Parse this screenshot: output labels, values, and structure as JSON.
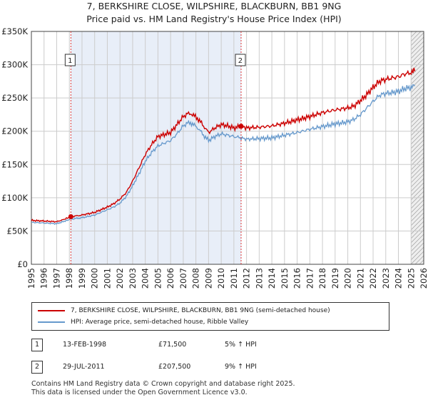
{
  "chart_data": {
    "type": "line",
    "title": "7, BERKSHIRE CLOSE, WILPSHIRE, BLACKBURN, BB1 9NG",
    "subtitle": "Price paid vs. HM Land Registry's House Price Index (HPI)",
    "xlabel": "",
    "ylabel": "",
    "xlim": [
      1995,
      2026
    ],
    "ylim": [
      0,
      350000
    ],
    "grid": true,
    "y_ticks": [
      {
        "value": 0,
        "label": "£0"
      },
      {
        "value": 50000,
        "label": "£50K"
      },
      {
        "value": 100000,
        "label": "£100K"
      },
      {
        "value": 150000,
        "label": "£150K"
      },
      {
        "value": 200000,
        "label": "£200K"
      },
      {
        "value": 250000,
        "label": "£250K"
      },
      {
        "value": 300000,
        "label": "£300K"
      },
      {
        "value": 350000,
        "label": "£350K"
      }
    ],
    "x_ticks": [
      "1995",
      "1996",
      "1997",
      "1998",
      "1999",
      "2000",
      "2001",
      "2002",
      "2003",
      "2004",
      "2005",
      "2006",
      "2007",
      "2008",
      "2009",
      "2010",
      "2011",
      "2012",
      "2013",
      "2014",
      "2015",
      "2016",
      "2017",
      "2018",
      "2019",
      "2020",
      "2021",
      "2022",
      "2023",
      "2024",
      "2025",
      "2026"
    ],
    "shaded_period": {
      "from": 1998.12,
      "to": 2011.57
    },
    "forecast_start": 2025.0,
    "series": [
      {
        "name": "7, BERKSHIRE CLOSE, WILPSHIRE, BLACKBURN, BB1 9NG (semi-detached house)",
        "color": "#cc0000",
        "x": [
          1995.0,
          1996.0,
          1997.0,
          1997.5,
          1998.12,
          1999.0,
          2000.0,
          2001.0,
          2001.5,
          2002.0,
          2002.5,
          2003.0,
          2003.5,
          2004.0,
          2004.5,
          2005.0,
          2005.5,
          2006.0,
          2006.5,
          2007.0,
          2007.5,
          2007.8,
          2008.2,
          2008.6,
          2009.0,
          2009.5,
          2010.0,
          2010.5,
          2011.0,
          2011.57,
          2012.0,
          2013.0,
          2014.0,
          2015.0,
          2016.0,
          2017.0,
          2018.0,
          2019.0,
          2020.0,
          2020.5,
          2021.0,
          2021.5,
          2022.0,
          2022.5,
          2023.0,
          2023.5,
          2024.0,
          2024.5,
          2025.0,
          2025.3
        ],
        "y": [
          66000,
          65000,
          64000,
          67000,
          71500,
          74000,
          78000,
          86000,
          91000,
          98000,
          108000,
          125000,
          145000,
          165000,
          180000,
          192000,
          195000,
          198000,
          210000,
          222000,
          228000,
          224000,
          218000,
          208000,
          198000,
          205000,
          210000,
          208000,
          205000,
          207500,
          205000,
          206000,
          208000,
          212000,
          217000,
          222000,
          228000,
          232000,
          235000,
          238000,
          246000,
          255000,
          266000,
          275000,
          278000,
          280000,
          282000,
          286000,
          288000,
          290000
        ]
      },
      {
        "name": "HPI: Average price, semi-detached house, Ribble Valley",
        "color": "#6699cc",
        "x": [
          1995.0,
          1996.0,
          1997.0,
          1997.5,
          1998.12,
          1999.0,
          2000.0,
          2001.0,
          2001.5,
          2002.0,
          2002.5,
          2003.0,
          2003.5,
          2004.0,
          2004.5,
          2005.0,
          2005.5,
          2006.0,
          2006.5,
          2007.0,
          2007.5,
          2007.8,
          2008.2,
          2008.6,
          2009.0,
          2009.5,
          2010.0,
          2010.5,
          2011.0,
          2011.57,
          2012.0,
          2013.0,
          2014.0,
          2015.0,
          2016.0,
          2017.0,
          2018.0,
          2019.0,
          2020.0,
          2020.5,
          2021.0,
          2021.5,
          2022.0,
          2022.5,
          2023.0,
          2023.5,
          2024.0,
          2024.5,
          2025.0,
          2025.3
        ],
        "y": [
          63000,
          62000,
          61000,
          64000,
          68000,
          70000,
          74000,
          82000,
          86000,
          92000,
          102000,
          118000,
          136000,
          155000,
          168000,
          178000,
          182000,
          186000,
          196000,
          208000,
          214000,
          210000,
          204000,
          194000,
          186000,
          192000,
          196000,
          194000,
          192000,
          190000,
          188000,
          189000,
          190000,
          194000,
          198000,
          203000,
          207000,
          211000,
          214000,
          218000,
          225000,
          235000,
          245000,
          254000,
          257000,
          258000,
          260000,
          264000,
          266000,
          268000
        ]
      }
    ],
    "annotations": [
      {
        "label": "1",
        "x": 1998.12,
        "price": 71500
      },
      {
        "label": "2",
        "x": 2011.57,
        "price": 207500
      }
    ]
  },
  "legend": {
    "entries": [
      {
        "label": "7, BERKSHIRE CLOSE, WILPSHIRE, BLACKBURN, BB1 9NG (semi-detached house)",
        "color": "#cc0000"
      },
      {
        "label": "HPI: Average price, semi-detached house, Ribble Valley",
        "color": "#6699cc"
      }
    ]
  },
  "transactions": [
    {
      "num": "1",
      "date": "13-FEB-1998",
      "price": "£71,500",
      "hpi": "5% ↑ HPI"
    },
    {
      "num": "2",
      "date": "29-JUL-2011",
      "price": "£207,500",
      "hpi": "9% ↑ HPI"
    }
  ],
  "footer": {
    "line1": "Contains HM Land Registry data © Crown copyright and database right 2025.",
    "line2": "This data is licensed under the Open Government Licence v3.0."
  }
}
